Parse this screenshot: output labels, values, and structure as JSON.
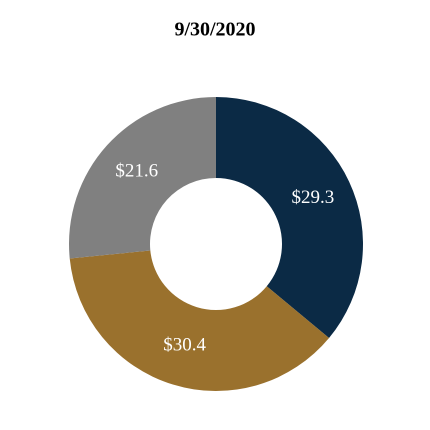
{
  "chart_data": {
    "type": "donut",
    "title": "9/30/2020",
    "values": [
      29.3,
      30.4,
      21.6
    ],
    "value_labels": [
      "$29.3",
      "$30.4",
      "$21.6"
    ],
    "colors": [
      "#0b2a45",
      "#9a712d",
      "#808080"
    ]
  }
}
